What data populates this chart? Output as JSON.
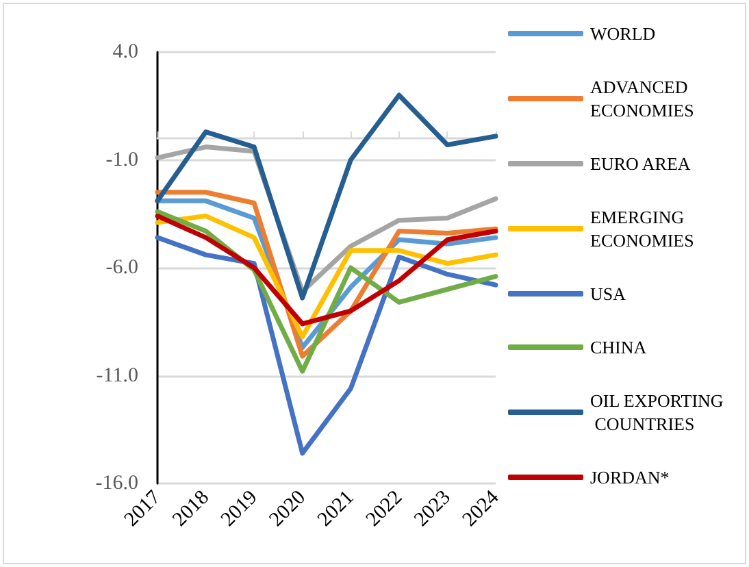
{
  "chart_data": {
    "type": "line",
    "categories": [
      "2017",
      "2018",
      "2019",
      "2020",
      "2021",
      "2022",
      "2023",
      "2024"
    ],
    "series": [
      {
        "name": "WORLD",
        "color": "#5b9bd5",
        "values": [
          -2.9,
          -2.9,
          -3.7,
          -9.7,
          -6.9,
          -4.7,
          -4.9,
          -4.6
        ]
      },
      {
        "name": "ADVANCED ECONOMIES",
        "color": "#ed7d31",
        "values": [
          -2.5,
          -2.5,
          -3.0,
          -10.1,
          -8.0,
          -4.3,
          -4.4,
          -4.2
        ]
      },
      {
        "name": "EURO AREA",
        "color": "#a5a5a5",
        "values": [
          -0.9,
          -0.4,
          -0.6,
          -7.1,
          -5.0,
          -3.8,
          -3.7,
          -2.8
        ]
      },
      {
        "name": "EMERGING ECONOMIES",
        "color": "#ffc000",
        "values": [
          -3.9,
          -3.6,
          -4.6,
          -9.2,
          -5.2,
          -5.2,
          -5.8,
          -5.4
        ]
      },
      {
        "name": "USA",
        "color": "#4472c4",
        "values": [
          -4.6,
          -5.4,
          -5.8,
          -14.6,
          -11.6,
          -5.5,
          -6.3,
          -6.8
        ]
      },
      {
        "name": "CHINA",
        "color": "#70ad47",
        "values": [
          -3.4,
          -4.3,
          -6.1,
          -10.8,
          -6.0,
          -7.6,
          -7.0,
          -6.4
        ]
      },
      {
        "name": "OIL EXPORTING COUNTRIES",
        "color": "#255e91",
        "values": [
          -2.9,
          0.3,
          -0.4,
          -7.4,
          -1.0,
          2.0,
          -0.3,
          0.1
        ]
      },
      {
        "name": "JORDAN*",
        "color": "#c00000",
        "values": [
          -3.6,
          -4.6,
          -6.0,
          -8.6,
          -8.0,
          -6.6,
          -4.7,
          -4.3
        ]
      }
    ],
    "ylim": [
      -16,
      4
    ],
    "yticks": [
      {
        "value": -16,
        "label": "-16.0"
      },
      {
        "value": -11,
        "label": "-11.0"
      },
      {
        "value": -6,
        "label": "-6.0"
      },
      {
        "value": -1,
        "label": "-1.0"
      },
      {
        "value": 4,
        "label": "4.0"
      }
    ],
    "grid": "y",
    "legend": "right",
    "marker": "none",
    "line_style": "solid"
  }
}
